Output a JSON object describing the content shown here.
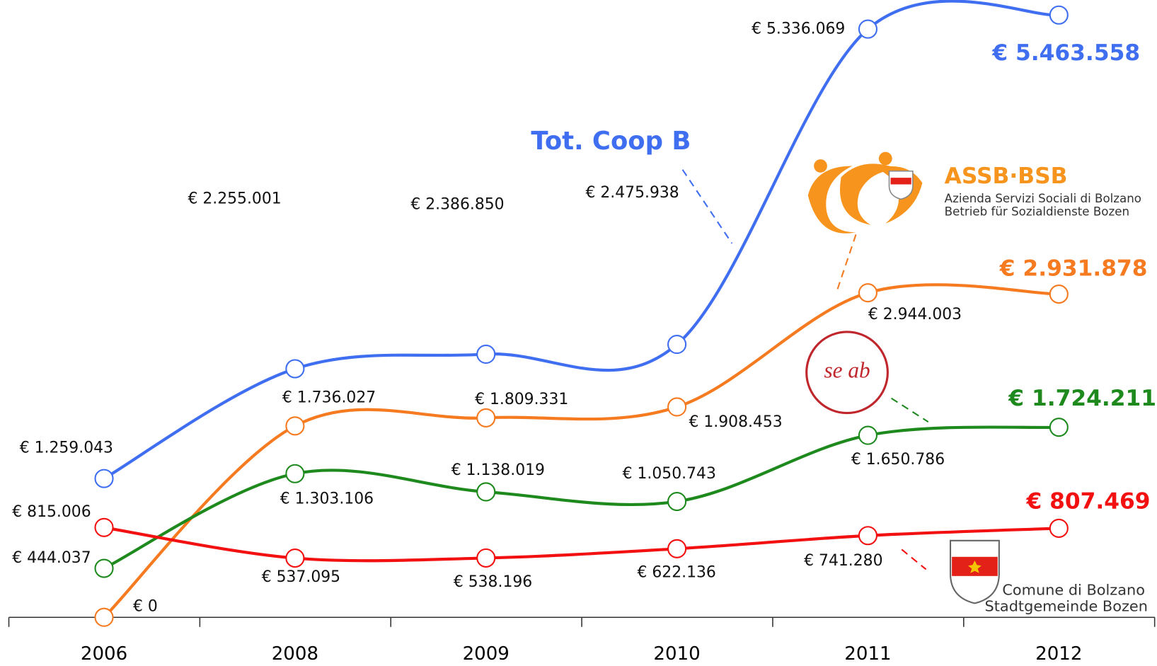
{
  "chart_data": {
    "type": "line",
    "categories": [
      "2006",
      "2008",
      "2009",
      "2010",
      "2011",
      "2012"
    ],
    "ylim": [
      0,
      5600000
    ],
    "series": [
      {
        "name": "Tot. Coop B",
        "color": "#3f6ef0",
        "values": [
          1259043,
          2255001,
          2386850,
          2475938,
          5336069,
          5463558
        ],
        "value_labels": [
          "€ 1.259.043",
          "€ 2.255.001",
          "€ 2.386.850",
          "€ 2.475.938",
          "€ 5.336.069",
          "€ 5.463.558"
        ]
      },
      {
        "name": "ASSB·BSB",
        "color": "#f57a20",
        "lines": [
          "Azienda Servizi Sociali di Bolzano",
          "Betrieb für Sozialdienste Bozen"
        ],
        "values": [
          0,
          1736027,
          1809331,
          1908453,
          2944003,
          2931878
        ],
        "value_labels": [
          "€ 0",
          "€ 1.736.027",
          "€ 1.809.331",
          "€ 1.908.453",
          "€ 2.944.003",
          "€ 2.931.878"
        ]
      },
      {
        "name": "se ab",
        "color": "#1e8a1e",
        "values": [
          444037,
          1303106,
          1138019,
          1050743,
          1650786,
          1724211
        ],
        "value_labels": [
          "€ 444.037",
          "€ 1.303.106",
          "€ 1.138.019",
          "€ 1.050.743",
          "€ 1.650.786",
          "€ 1.724.211"
        ]
      },
      {
        "name": "Comune di Bolzano",
        "color": "#f21010",
        "lines": [
          "Stadtgemeinde Bozen"
        ],
        "values": [
          815006,
          537095,
          538196,
          622136,
          741280,
          807469
        ],
        "value_labels": [
          "€ 815.006",
          "€ 537.095",
          "€ 538.196",
          "€ 622.136",
          "€ 741.280",
          "€ 807.469"
        ]
      }
    ]
  }
}
